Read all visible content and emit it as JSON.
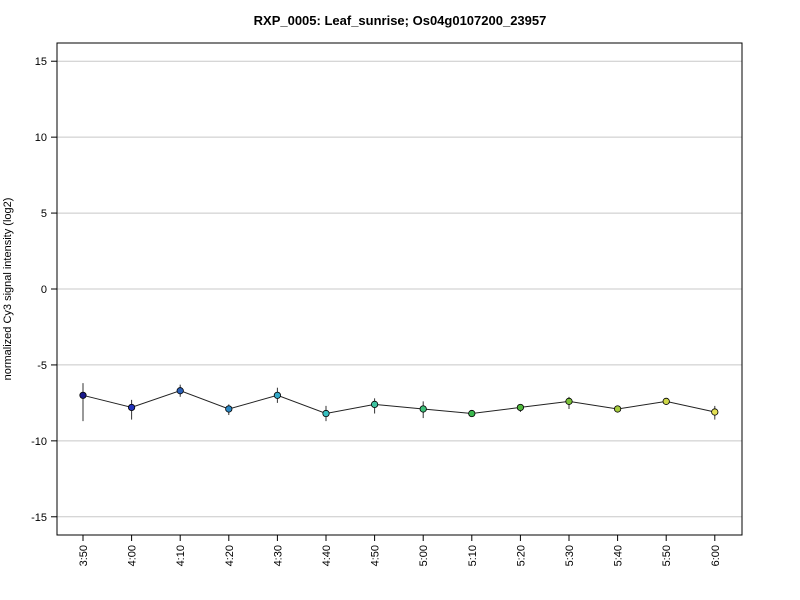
{
  "chart_data": {
    "type": "line",
    "title": "RXP_0005: Leaf_sunrise; Os04g0107200_23957",
    "xlabel": "",
    "ylabel": "normalized Cy3 signal intensity (log2)",
    "categories": [
      "3:50",
      "4:00",
      "4:10",
      "4:20",
      "4:30",
      "4:40",
      "4:50",
      "5:00",
      "5:10",
      "5:20",
      "5:30",
      "5:40",
      "5:50",
      "6:00"
    ],
    "values": [
      -7.0,
      -7.8,
      -6.7,
      -7.9,
      -7.0,
      -8.2,
      -7.6,
      -7.9,
      -8.2,
      -7.8,
      -7.4,
      -7.9,
      -7.4,
      -8.1
    ],
    "error": [
      [
        -8.7,
        -6.2
      ],
      [
        -8.6,
        -7.3
      ],
      [
        -7.1,
        -6.3
      ],
      [
        -8.3,
        -7.6
      ],
      [
        -7.5,
        -6.5
      ],
      [
        -8.7,
        -7.7
      ],
      [
        -8.2,
        -7.2
      ],
      [
        -8.5,
        -7.4
      ],
      [
        -8.4,
        -8.0
      ],
      [
        -8.1,
        -7.6
      ],
      [
        -7.9,
        -7.1
      ],
      [
        -8.1,
        -7.7
      ],
      [
        -7.6,
        -7.2
      ],
      [
        -8.6,
        -7.7
      ]
    ],
    "point_colors": [
      "#1a1a8c",
      "#2233bb",
      "#2a5fb8",
      "#2c88c4",
      "#33a8c8",
      "#38c0c0",
      "#3dc2a0",
      "#3cbf78",
      "#3ab84e",
      "#4fb83c",
      "#7cc23a",
      "#a6cc3d",
      "#cdd648",
      "#e3e055"
    ],
    "ylim": [
      -16.2,
      16.2
    ],
    "yticks": [
      -15,
      -10,
      -5,
      0,
      5,
      10,
      15
    ],
    "grid": true
  }
}
